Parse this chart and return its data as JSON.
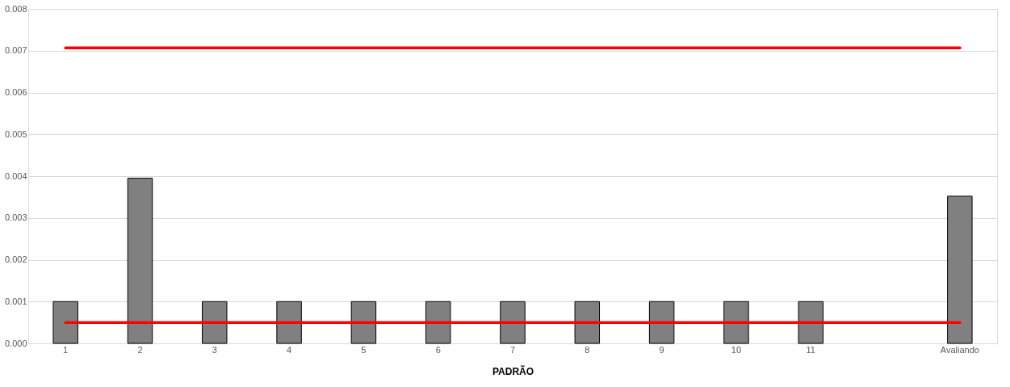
{
  "chart_data": {
    "type": "bar",
    "xlabel": "PADRÃO",
    "categories": [
      "1",
      "2",
      "3",
      "4",
      "5",
      "6",
      "7",
      "8",
      "9",
      "10",
      "11",
      null,
      "Avaliando"
    ],
    "series": [
      {
        "color": "#808080",
        "values": [
          0.001,
          0.00395,
          0.001,
          0.001,
          0.001,
          0.001,
          0.001,
          0.001,
          0.001,
          0.001,
          0.001,
          null,
          0.00352
        ]
      },
      {
        "type": "line",
        "color": "#ff0000",
        "values": [
          0.00707,
          0.00707,
          0.00707,
          0.00707,
          0.00707,
          0.00707,
          0.00707,
          0.00707,
          0.00707,
          0.00707,
          0.00707,
          0.00707,
          0.00707
        ]
      },
      {
        "type": "line",
        "color": "#ff0000",
        "values": [
          0.0005,
          0.0005,
          0.0005,
          0.0005,
          0.0005,
          0.0005,
          0.0005,
          0.0005,
          0.0005,
          0.0005,
          0.0005,
          0.0005,
          0.0005
        ]
      }
    ],
    "ylim": [
      0,
      0.008
    ],
    "yticks": [
      {
        "value": 0,
        "label": "0.000"
      },
      0.001,
      0.002,
      0.003,
      0.004,
      0.005,
      0.006,
      0.007,
      0.008
    ],
    "grid": "y"
  }
}
